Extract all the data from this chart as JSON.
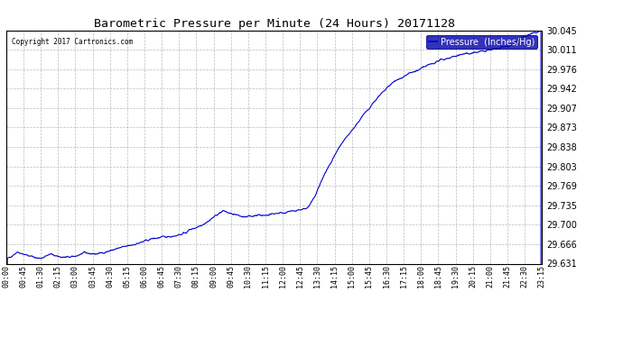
{
  "title": "Barometric Pressure per Minute (24 Hours) 20171128",
  "copyright": "Copyright 2017 Cartronics.com",
  "legend_label": "Pressure  (Inches/Hg)",
  "line_color": "#0000CC",
  "background_color": "#ffffff",
  "grid_color": "#aaaaaa",
  "yticks": [
    29.631,
    29.666,
    29.7,
    29.735,
    29.769,
    29.803,
    29.838,
    29.873,
    29.907,
    29.942,
    29.976,
    30.011,
    30.045
  ],
  "ymin": 29.631,
  "ymax": 30.045,
  "xtick_labels": [
    "00:00",
    "00:45",
    "01:30",
    "02:15",
    "03:00",
    "03:45",
    "04:30",
    "05:15",
    "06:00",
    "06:45",
    "07:30",
    "08:15",
    "09:00",
    "09:45",
    "10:30",
    "11:15",
    "12:00",
    "12:45",
    "13:30",
    "14:15",
    "15:00",
    "15:45",
    "16:30",
    "17:15",
    "18:00",
    "18:45",
    "19:30",
    "20:15",
    "21:00",
    "21:45",
    "22:30",
    "23:15"
  ],
  "legend_bg": "#0000AA",
  "legend_text_color": "#ffffff",
  "keypoints_minutes": [
    0,
    30,
    60,
    90,
    120,
    150,
    180,
    210,
    240,
    270,
    300,
    330,
    360,
    390,
    420,
    450,
    480,
    495,
    510,
    540,
    570,
    585,
    600,
    630,
    660,
    675,
    690,
    720,
    750,
    780,
    810,
    825,
    855,
    900,
    960,
    990,
    1035,
    1080,
    1110,
    1125,
    1170,
    1215,
    1260,
    1305,
    1350,
    1395,
    1439
  ],
  "keypoints_pressures": [
    29.638,
    29.652,
    29.645,
    29.64,
    29.648,
    29.642,
    29.643,
    29.65,
    29.648,
    29.652,
    29.658,
    29.663,
    29.668,
    29.675,
    29.678,
    29.68,
    29.685,
    29.692,
    29.695,
    29.705,
    29.72,
    29.725,
    29.72,
    29.715,
    29.715,
    29.718,
    29.716,
    29.72,
    29.722,
    29.725,
    29.73,
    29.745,
    29.79,
    29.843,
    29.895,
    29.92,
    29.951,
    29.968,
    29.975,
    29.981,
    29.993,
    30.001,
    30.006,
    30.011,
    30.018,
    30.035,
    30.045
  ]
}
